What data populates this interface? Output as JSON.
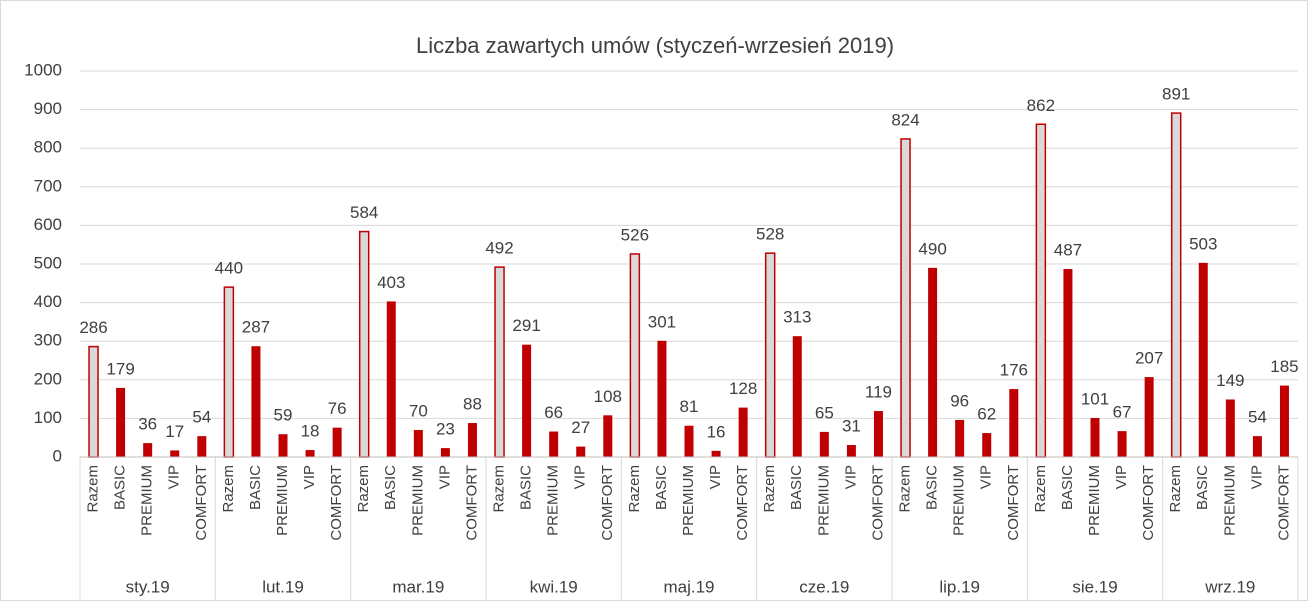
{
  "chart_data": {
    "type": "bar",
    "title": "Liczba zawartych umów (styczeń-wrzesień 2019)",
    "categories": [
      "sty.19",
      "lut.19",
      "mar.19",
      "kwi.19",
      "maj.19",
      "cze.19",
      "lip.19",
      "sie.19",
      "wrz.19"
    ],
    "series": [
      {
        "name": "Razem",
        "color": "#d9d9d9",
        "edgecolor": "#c00000",
        "values": [
          286,
          440,
          584,
          492,
          526,
          528,
          824,
          862,
          891
        ]
      },
      {
        "name": "BASIC",
        "color": "#c00000",
        "values": [
          179,
          287,
          403,
          291,
          301,
          313,
          490,
          487,
          503
        ]
      },
      {
        "name": "PREMIUM",
        "color": "#c00000",
        "values": [
          36,
          59,
          70,
          66,
          81,
          65,
          96,
          101,
          149
        ]
      },
      {
        "name": "VIP",
        "color": "#c00000",
        "values": [
          17,
          18,
          23,
          27,
          16,
          31,
          62,
          67,
          54
        ]
      },
      {
        "name": "COMFORT",
        "color": "#c00000",
        "values": [
          54,
          76,
          88,
          108,
          128,
          119,
          176,
          207,
          185
        ]
      }
    ],
    "ylim": [
      0,
      1000
    ],
    "yticks": [
      0,
      100,
      200,
      300,
      400,
      500,
      600,
      700,
      800,
      900,
      1000
    ],
    "grid": true
  }
}
